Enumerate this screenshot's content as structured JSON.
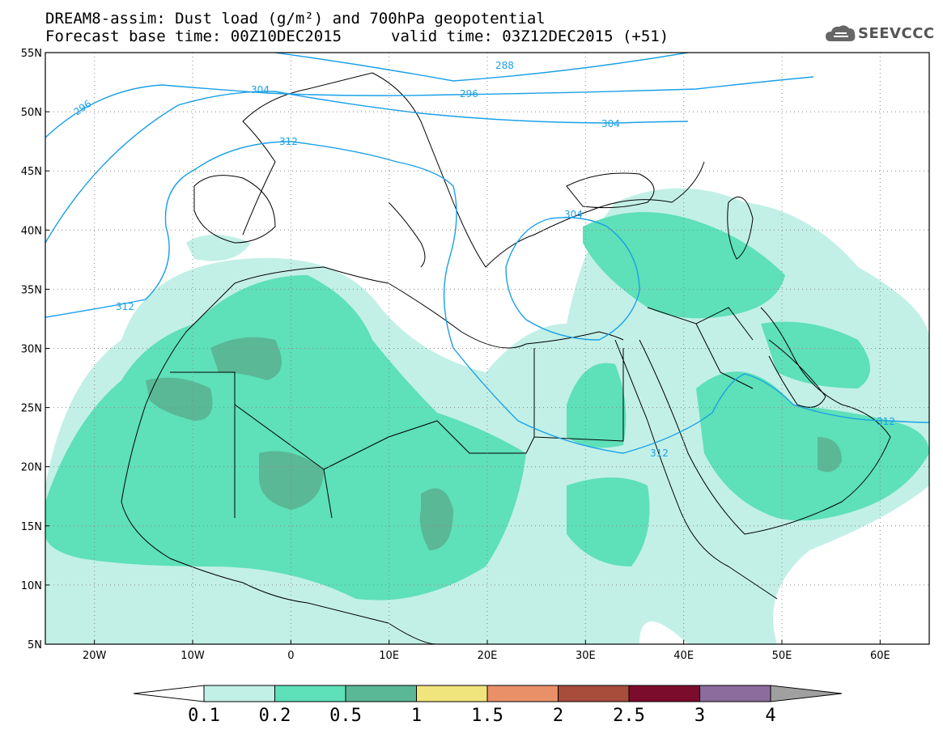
{
  "header": {
    "title_line1": "DREAM8-assim: Dust load (g/m²) and 700hPa geopotential",
    "title_line2": "Forecast base time: 00Z10DEC2015",
    "valid_time": "valid time: 03Z12DEC2015 (+51)",
    "logo_text": "SEEVCCC",
    "logo_icon": "cloud-icon"
  },
  "map": {
    "lat_labels": [
      "55N",
      "50N",
      "45N",
      "40N",
      "35N",
      "30N",
      "25N",
      "20N",
      "15N",
      "10N",
      "5N"
    ],
    "lon_labels": [
      "20W",
      "10W",
      "0",
      "10E",
      "20E",
      "30E",
      "40E",
      "50E",
      "60E"
    ],
    "contour_color": "#1aa0e8",
    "contour_labels": {
      "c288": "288",
      "c296_top": "296",
      "c296_left": "296",
      "c304_top": "304",
      "c304_left": "304",
      "c304_aegean": "304",
      "c312_w": "312",
      "c312_left": "312",
      "c312_red_sea": "312",
      "c312_gulf": "312"
    }
  },
  "colorbar": {
    "labels": [
      "0.1",
      "0.2",
      "0.5",
      "1",
      "1.5",
      "2",
      "2.5",
      "3",
      "4"
    ],
    "colors": [
      "#c2f0e6",
      "#5ee0b8",
      "#5ab896",
      "#f0e47c",
      "#ea9068",
      "#a84c3c",
      "#7c0c2c",
      "#8c6c9c"
    ],
    "min_color": "#ffffff",
    "max_color": "#a0a0a0"
  }
}
